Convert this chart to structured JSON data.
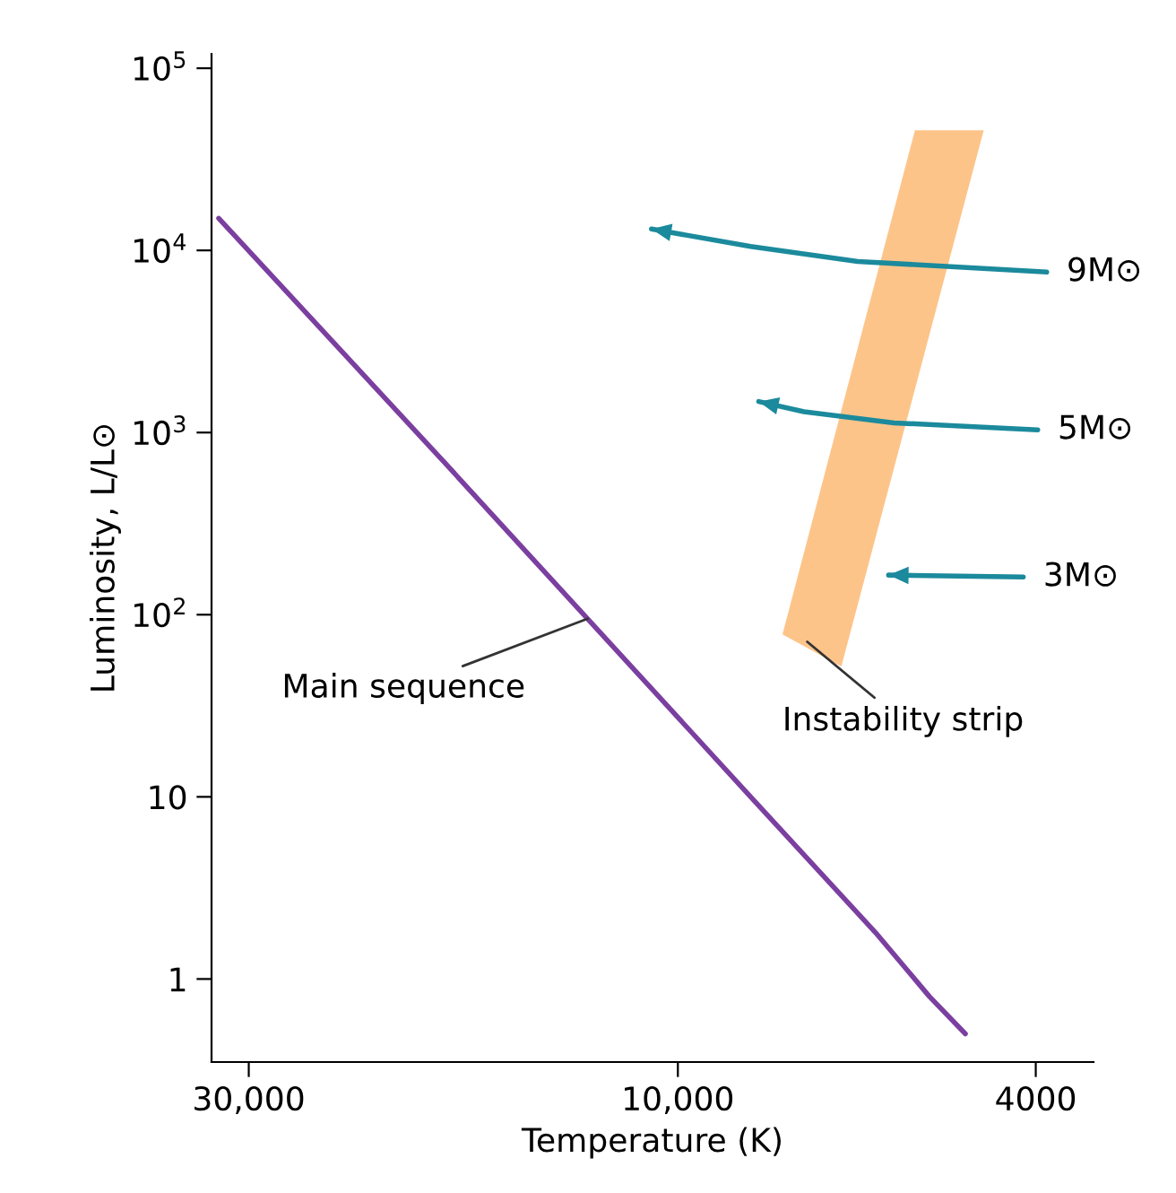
{
  "chart_data": {
    "type": "line",
    "xlabel": "Temperature (K)",
    "ylabel": "Luminosity, L/L⊙",
    "log": "xy",
    "grid": false,
    "legend": false,
    "xlim": [
      33000,
      3450
    ],
    "ylim": [
      0.35,
      120000
    ],
    "xticks": [
      {
        "value": 30000,
        "label": "30,000"
      },
      {
        "value": 10000,
        "label": "10,000"
      },
      4000
    ],
    "yticks": [
      1,
      10,
      {
        "value": 100,
        "label": "10$^{2}$"
      },
      {
        "value": 1000,
        "label": "10$^{3}$"
      },
      {
        "value": 10000,
        "label": "10$^{4}$"
      },
      {
        "value": 100000,
        "label": "10$^{5}$"
      }
    ],
    "series": [
      {
        "color": "#7b3fa0",
        "x": [
          32400,
          18200,
          12600,
          8300,
          6030,
          5250,
          4790
        ],
        "values": [
          15000,
          690,
          95,
          10,
          1.8,
          0.8,
          0.5
        ]
      },
      {
        "type": "area",
        "color": "#fdc48a",
        "x": [
          5450,
          4570,
          6580,
          7650
        ],
        "values": [
          45700,
          45700,
          52,
          78
        ]
      },
      {
        "type": "line",
        "color": "#1b8a9c",
        "x": [
          3890,
          6310,
          8300,
          10700
        ],
        "values": [
          7600,
          8700,
          10500,
          13100
        ]
      },
      {
        "type": "line",
        "color": "#1b8a9c",
        "x": [
          3980,
          5750,
          7240,
          8130
        ],
        "values": [
          1035,
          1130,
          1300,
          1480
        ]
      },
      {
        "type": "line",
        "color": "#1b8a9c",
        "x": [
          4130,
          5830
        ],
        "values": [
          161,
          165
        ]
      }
    ],
    "annotations": [
      {
        "text": "Main sequence",
        "x": 12600,
        "y": 95
      },
      {
        "text": "Instability strip",
        "x": 7180,
        "y": 71
      },
      {
        "text": "9M⊙",
        "x": 3890,
        "y": 7600
      },
      {
        "text": "5M⊙",
        "x": 3980,
        "y": 1035
      },
      {
        "text": "3M⊙",
        "x": 4130,
        "y": 161
      }
    ]
  }
}
